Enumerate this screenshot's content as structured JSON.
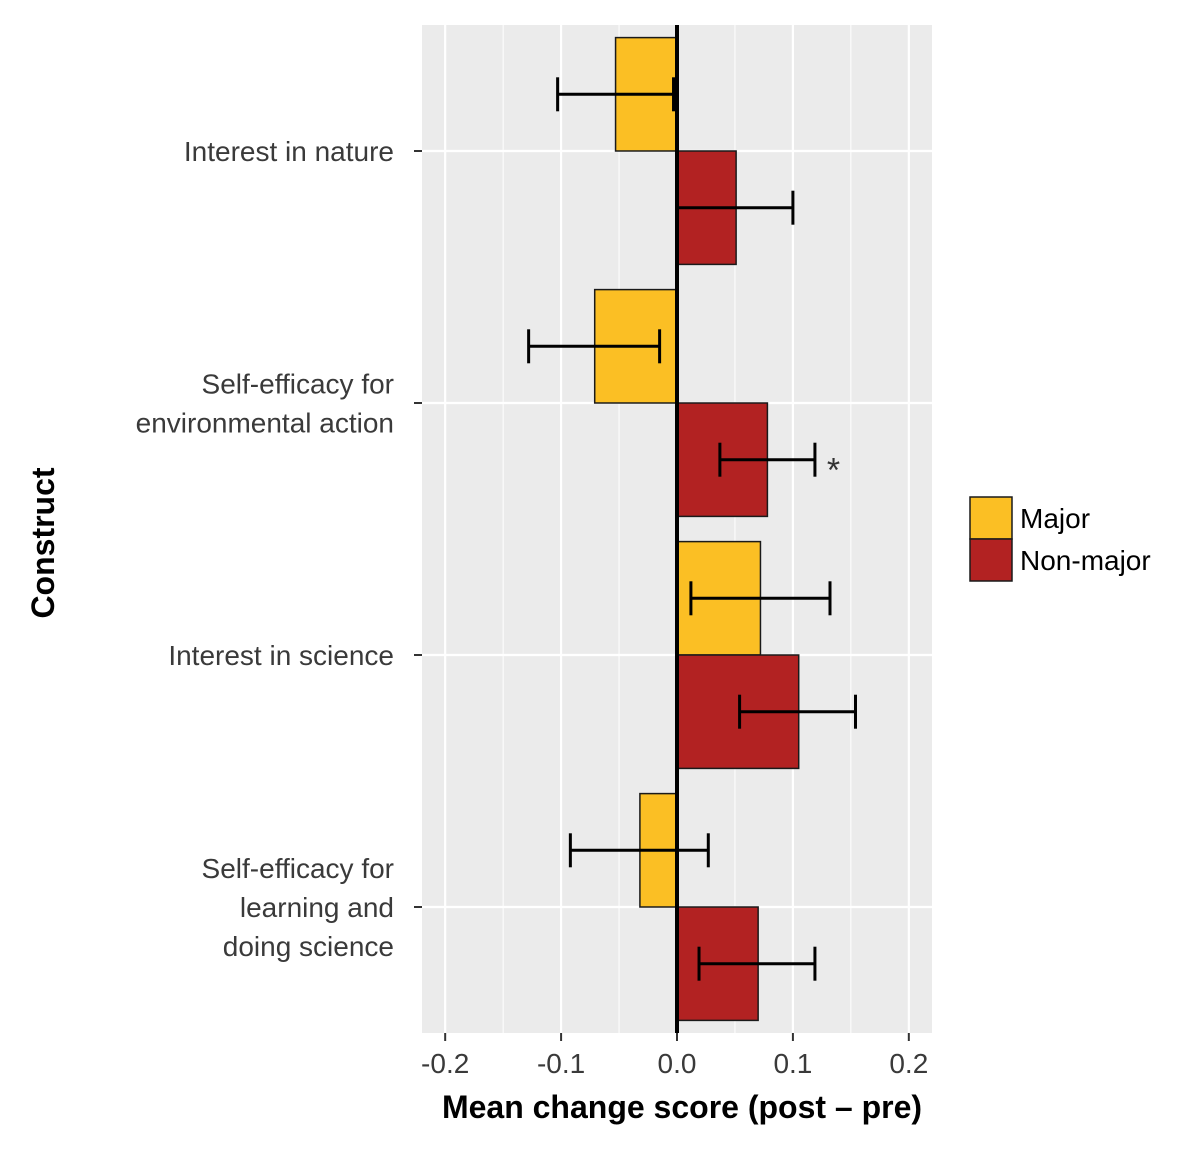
{
  "chart_data": {
    "type": "bar",
    "orientation": "horizontal",
    "title": "",
    "xlabel": "Mean change score (post – pre)",
    "ylabel": "Construct",
    "xlim": [
      -0.22,
      0.22
    ],
    "xticks": [
      -0.2,
      -0.1,
      0.0,
      0.1,
      0.2
    ],
    "xtick_labels": [
      "-0.2",
      "-0.1",
      "0.0",
      "0.1",
      "0.2"
    ],
    "grid": true,
    "legend_position": "right",
    "categories": [
      [
        "Interest in nature"
      ],
      [
        "Self-efficacy for",
        "environmental action"
      ],
      [
        "Interest in science"
      ],
      [
        "Self-efficacy for",
        "learning and",
        "doing science"
      ]
    ],
    "series": [
      {
        "name": "Major",
        "color": "#FBBF24",
        "values": [
          -0.053,
          -0.071,
          0.072,
          -0.032
        ],
        "error_low": [
          -0.103,
          -0.128,
          0.012,
          -0.092
        ],
        "error_high": [
          -0.003,
          -0.015,
          0.132,
          0.027
        ]
      },
      {
        "name": "Non-major",
        "color": "#B22222",
        "values": [
          0.051,
          0.078,
          0.105,
          0.07
        ],
        "error_low": [
          0.0,
          0.037,
          0.054,
          0.019
        ],
        "error_high": [
          0.1,
          0.119,
          0.154,
          0.119
        ]
      }
    ],
    "annotations": [
      {
        "text": "*",
        "category_index": 1,
        "series_index": 1
      }
    ]
  }
}
